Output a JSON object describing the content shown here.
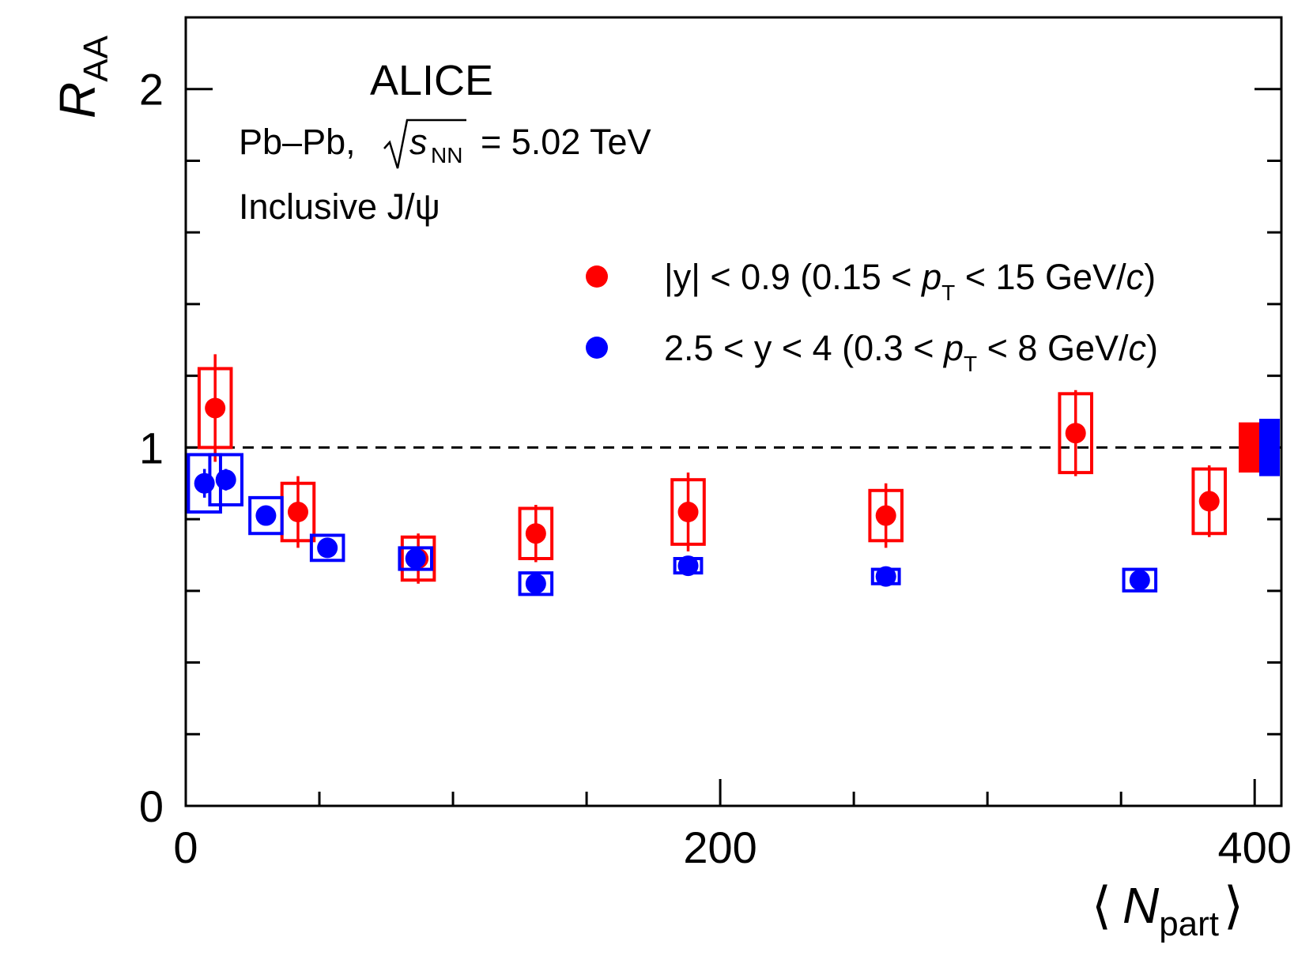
{
  "chart_data": {
    "type": "scatter",
    "title": "ALICE",
    "annotations": {
      "experiment": "ALICE",
      "collision": "Pb–Pb,",
      "energy_symbol": "s",
      "energy_sub": "NN",
      "energy_value": "= 5.02 TeV",
      "particle": "Inclusive J/ψ"
    },
    "xlabel": {
      "open": "⟨",
      "var": "N",
      "sub": "part",
      "close": "⟩"
    },
    "ylabel": {
      "var": "R",
      "sub": "AA"
    },
    "xlim": [
      0,
      410
    ],
    "ylim": [
      0,
      2.2
    ],
    "x_ticks": [
      0,
      200,
      400
    ],
    "x_tick_labels": [
      "0",
      "200",
      "400"
    ],
    "y_ticks": [
      0,
      1,
      2
    ],
    "y_tick_labels": [
      "0",
      "1",
      "2"
    ],
    "x_minor_ticks": [
      50,
      100,
      150,
      250,
      300,
      350
    ],
    "y_minor_ticks": [
      0.2,
      0.4,
      0.6,
      0.8,
      1.2,
      1.4,
      1.6,
      1.8
    ],
    "reference_line": 1,
    "legend": {
      "position": "top-right",
      "entries": [
        {
          "series": "midrapidity",
          "pre": "|y| < 0.9 (0.15 < ",
          "pt": "p",
          "pt_sub": "T",
          "mid": " < 15 GeV/",
          "c": "c",
          "post": ")"
        },
        {
          "series": "forward",
          "pre": "2.5 < y < 4 (0.3 < ",
          "pt": "p",
          "pt_sub": "T",
          "mid": " < 8 GeV/",
          "c": "c",
          "post": ")"
        }
      ]
    },
    "series": [
      {
        "name": "|y| < 0.9 (0.15 < pT < 15 GeV/c)",
        "key": "midrapidity",
        "color": "#ff0000",
        "points": [
          {
            "x": 11,
            "y": 1.11,
            "stat": 0.15,
            "sys": 0.11,
            "sys_hw": 6
          },
          {
            "x": 42,
            "y": 0.82,
            "stat": 0.1,
            "sys": 0.08,
            "sys_hw": 6
          },
          {
            "x": 87,
            "y": 0.69,
            "stat": 0.07,
            "sys": 0.06,
            "sys_hw": 6
          },
          {
            "x": 131,
            "y": 0.76,
            "stat": 0.08,
            "sys": 0.07,
            "sys_hw": 6
          },
          {
            "x": 188,
            "y": 0.82,
            "stat": 0.11,
            "sys": 0.09,
            "sys_hw": 6
          },
          {
            "x": 262,
            "y": 0.81,
            "stat": 0.09,
            "sys": 0.07,
            "sys_hw": 6
          },
          {
            "x": 333,
            "y": 1.04,
            "stat": 0.12,
            "sys": 0.11,
            "sys_hw": 6
          },
          {
            "x": 383,
            "y": 0.85,
            "stat": 0.1,
            "sys": 0.09,
            "sys_hw": 6
          }
        ]
      },
      {
        "name": "2.5 < y < 4 (0.3 < pT < 8 GeV/c)",
        "key": "forward",
        "color": "#0000ff",
        "points": [
          {
            "x": 7,
            "y": 0.9,
            "stat": 0.04,
            "sys": 0.08,
            "sys_hw": 6
          },
          {
            "x": 15,
            "y": 0.91,
            "stat": 0.03,
            "sys": 0.07,
            "sys_hw": 6
          },
          {
            "x": 30,
            "y": 0.81,
            "stat": 0.02,
            "sys": 0.05,
            "sys_hw": 6
          },
          {
            "x": 53,
            "y": 0.72,
            "stat": 0.01,
            "sys": 0.035,
            "sys_hw": 6
          },
          {
            "x": 86,
            "y": 0.69,
            "stat": 0.01,
            "sys": 0.03,
            "sys_hw": 6
          },
          {
            "x": 131,
            "y": 0.62,
            "stat": 0.01,
            "sys": 0.03,
            "sys_hw": 6
          },
          {
            "x": 188,
            "y": 0.67,
            "stat": 0.01,
            "sys": 0.02,
            "sys_hw": 5
          },
          {
            "x": 262,
            "y": 0.64,
            "stat": 0.01,
            "sys": 0.02,
            "sys_hw": 5
          },
          {
            "x": 357,
            "y": 0.63,
            "stat": 0.01,
            "sys": 0.03,
            "sys_hw": 6
          }
        ]
      }
    ],
    "global_uncertainties": [
      {
        "series": "midrapidity",
        "color": "#ff0000",
        "low": 0.93,
        "high": 1.07
      },
      {
        "series": "forward",
        "color": "#0000ff",
        "low": 0.92,
        "high": 1.08
      }
    ]
  }
}
